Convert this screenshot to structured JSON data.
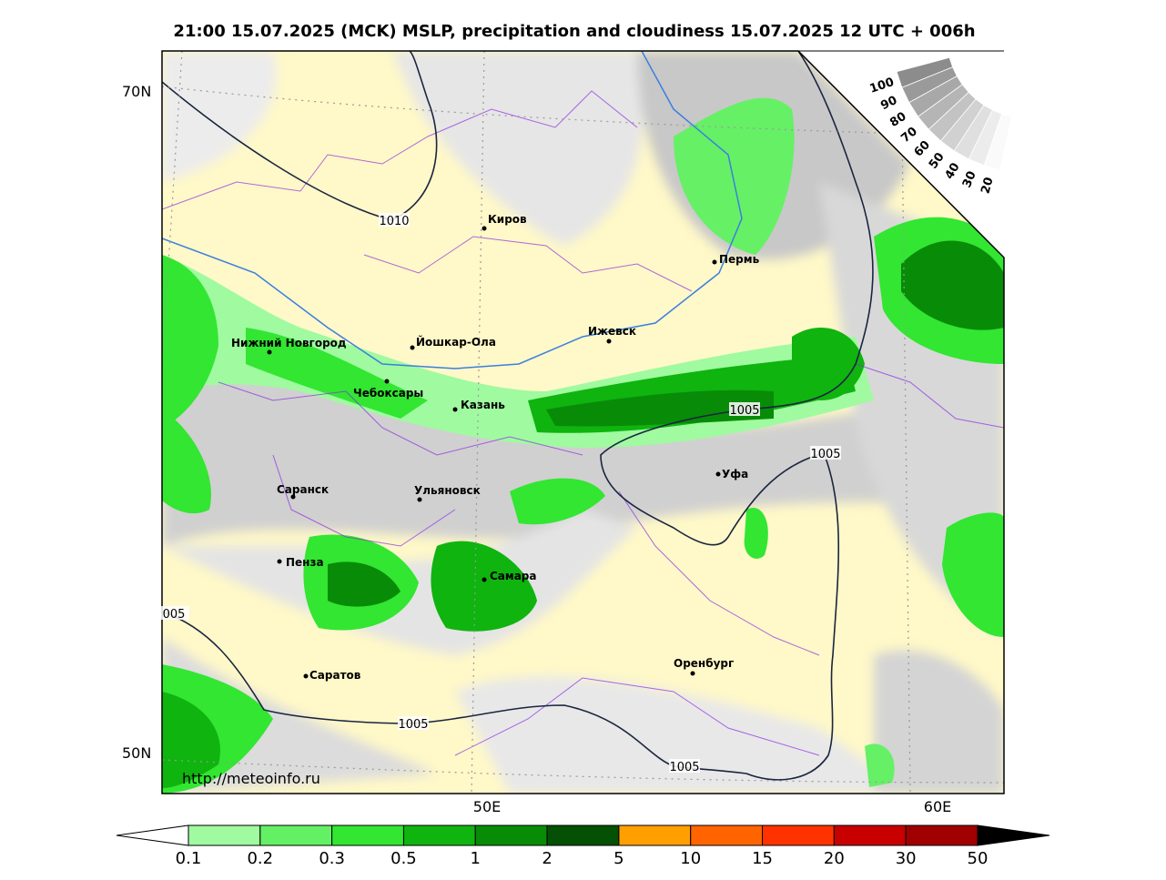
{
  "header": {
    "title": "21:00 15.07.2025 (MCK) MSLP, precipitation and cloudiness 15.07.2025 12 UTC + 006h"
  },
  "map": {
    "lat_labels": [
      "70N",
      "50N"
    ],
    "lon_labels": [
      "50E",
      "60E"
    ],
    "cities": [
      "Киров",
      "Пермь",
      "Нижний Новгород",
      "Йошкар-Ола",
      "Ижевск",
      "Чебоксары",
      "Казань",
      "Уфа",
      "Саранск",
      "Ульяновск",
      "Пенза",
      "Самара",
      "Оренбург",
      "Саратов"
    ],
    "isobar_labels": [
      "1010",
      "1005",
      "1005",
      "005",
      "1005",
      "1005"
    ],
    "source": "http://meteoinfo.ru"
  },
  "cloud_legend": {
    "labels": [
      "100",
      "90",
      "80",
      "70",
      "60",
      "50",
      "40",
      "30",
      "20"
    ]
  },
  "colorbar": {
    "labels": [
      "0.1",
      "0.2",
      "0.3",
      "0.5",
      "1",
      "2",
      "5",
      "10",
      "15",
      "20",
      "30",
      "50"
    ]
  }
}
